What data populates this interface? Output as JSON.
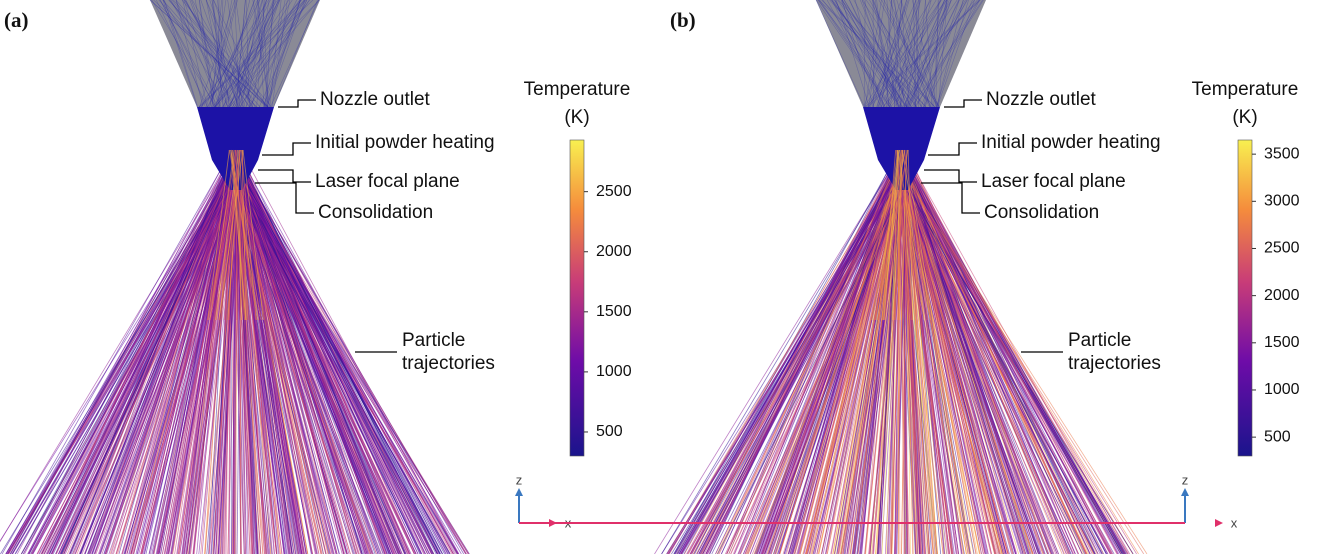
{
  "panels": [
    {
      "label": "(a)",
      "annotations": [
        "Nozzle outlet",
        "Initial powder heating",
        "Laser focal plane",
        "Consolidation"
      ],
      "trajectory_label": [
        "Particle",
        "trajectories"
      ],
      "colorbar": {
        "title": "Temperature",
        "unit": "(K)",
        "lim": [
          300,
          2930
        ],
        "ticks": [
          500,
          1000,
          1500,
          2000,
          2500
        ]
      },
      "axes": [
        "z",
        "x"
      ]
    },
    {
      "label": "(b)",
      "annotations": [
        "Nozzle outlet",
        "Initial powder heating",
        "Laser focal plane",
        "Consolidation"
      ],
      "trajectory_label": [
        "Particle",
        "trajectories"
      ],
      "colorbar": {
        "title": "Temperature",
        "unit": "(K)",
        "lim": [
          300,
          3650
        ],
        "ticks": [
          500,
          1000,
          1500,
          2000,
          2500,
          3000,
          3500
        ]
      },
      "axes": [
        "z",
        "x"
      ]
    }
  ]
}
